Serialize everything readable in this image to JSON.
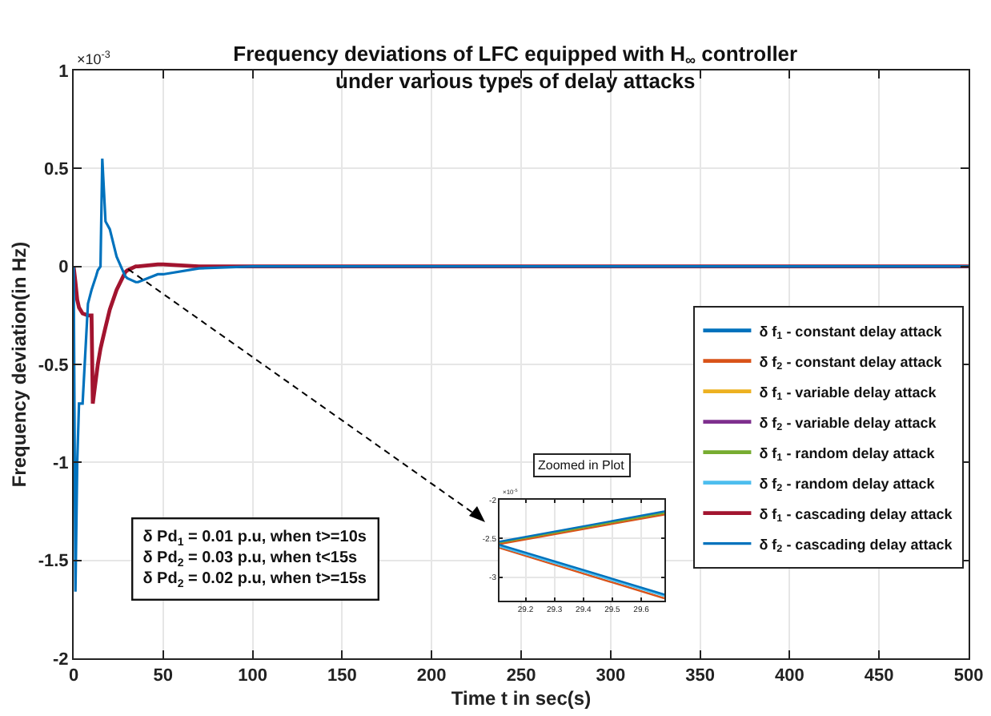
{
  "chart_data": [
    {
      "type": "line",
      "title": "Frequency deviations of LFC equipped with H$_{∞}$ controller\nunder various types of delay attacks",
      "xlabel": "Time t in sec(s)",
      "ylabel": "Frequency deviation(in Hz)",
      "x": [
        0,
        1,
        2,
        3,
        5,
        8,
        10,
        10.7,
        12.5,
        13.5,
        15,
        16,
        17.8,
        20.2,
        24,
        28.8,
        30,
        34.7,
        36,
        47,
        50,
        70,
        100,
        200,
        500
      ],
      "series": [
        {
          "name": "δ f$_{1}$ - constant delay attack",
          "color": "#0072bd",
          "values": [
            null,
            null,
            null,
            null,
            null,
            null,
            null,
            null,
            null,
            null,
            null,
            null,
            null,
            null,
            null,
            null,
            null,
            null,
            null,
            null,
            null,
            null,
            null,
            null,
            null
          ]
        },
        {
          "name": "δ f$_{2}$ - constant delay attack",
          "color": "#d95319",
          "values": [
            null,
            null,
            null,
            null,
            null,
            null,
            null,
            null,
            null,
            null,
            null,
            null,
            null,
            null,
            null,
            null,
            null,
            null,
            null,
            null,
            null,
            null,
            null,
            null,
            null
          ]
        },
        {
          "name": "δ f$_{1}$ - variable delay attack",
          "color": "#edb120",
          "values": [
            null,
            null,
            null,
            null,
            null,
            null,
            null,
            null,
            null,
            null,
            null,
            null,
            null,
            null,
            null,
            null,
            null,
            null,
            null,
            null,
            null,
            null,
            null,
            null,
            null
          ]
        },
        {
          "name": "δ f$_{2}$ - variable delay attack",
          "color": "#7e2f8e",
          "values": [
            null,
            null,
            null,
            null,
            null,
            null,
            null,
            null,
            null,
            null,
            null,
            null,
            null,
            null,
            null,
            null,
            null,
            null,
            null,
            null,
            null,
            null,
            null,
            null,
            null
          ]
        },
        {
          "name": "δ f$_{1}$ - random delay attack",
          "color": "#77ac30",
          "values": [
            null,
            null,
            null,
            null,
            null,
            null,
            null,
            null,
            null,
            null,
            null,
            null,
            null,
            null,
            null,
            null,
            null,
            null,
            null,
            null,
            null,
            null,
            null,
            null,
            null
          ]
        },
        {
          "name": "δ f$_{2}$ - random delay attack",
          "color": "#4dbeee",
          "values": [
            null,
            null,
            null,
            null,
            null,
            null,
            null,
            null,
            null,
            null,
            null,
            null,
            null,
            null,
            null,
            null,
            null,
            null,
            null,
            null,
            null,
            null,
            null,
            null,
            null
          ]
        },
        {
          "name": "δ f$_{1}$ - cascading delay attack",
          "color": "#a2142f",
          "values": [
            0,
            -0.08,
            -0.17,
            -0.21,
            -0.24,
            -0.25,
            -0.25,
            -0.7,
            -0.57,
            -0.5,
            -0.42,
            -0.38,
            -0.31,
            -0.22,
            -0.12,
            -0.03,
            -0.02,
            0,
            0,
            0.01,
            0.01,
            0,
            0,
            0,
            0
          ]
        },
        {
          "name": "δ f$_{2}$ - cascading delay attack",
          "color": "#0072bd",
          "values": [
            0,
            -1.66,
            -1,
            -0.7,
            -0.7,
            -0.19,
            -0.12,
            -0.1,
            -0.05,
            -0.02,
            0,
            0.55,
            0.23,
            0.19,
            0.05,
            -0.05,
            -0.06,
            -0.08,
            -0.08,
            -0.04,
            -0.04,
            -0.01,
            0,
            0,
            0
          ]
        }
      ],
      "xlim": [
        0,
        500
      ],
      "xticks": [
        0,
        50,
        100,
        150,
        200,
        250,
        300,
        350,
        400,
        450,
        500
      ],
      "ylim": [
        -2,
        1
      ],
      "yticks": [
        -2,
        -1.5,
        -1,
        -0.5,
        0,
        0.5,
        1
      ],
      "grid": true,
      "legend": "right",
      "annotations": [
        "×10$^{-3}$",
        "δ Pd$_{1}$ = 0.01 p.u, when t>=10s",
        "δ Pd$_{2}$ = 0.03 p.u, when t<15s",
        "δ Pd$_{2}$ = 0.02 p.u, when t>=15s"
      ]
    },
    {
      "type": "line",
      "title": "Zoomed in Plot",
      "x": [
        29.11,
        29.68
      ],
      "series": [
        {
          "color": "#d95319",
          "values": [
            -2.57,
            -2.19
          ]
        },
        {
          "color": "#77ac30",
          "values": [
            -2.55,
            -2.17
          ]
        },
        {
          "color": "#0072bd",
          "values": [
            -2.54,
            -2.15
          ]
        },
        {
          "color": "#d95319",
          "values": [
            -2.62,
            -3.27
          ]
        },
        {
          "color": "#4dbeee",
          "values": [
            -2.6,
            -3.24
          ]
        },
        {
          "color": "#0072bd",
          "values": [
            -2.58,
            -3.22
          ]
        }
      ],
      "xlim": [
        29.11,
        29.68
      ],
      "xticks": [
        29.2,
        29.3,
        29.4,
        29.5,
        29.6
      ],
      "ylim": [
        -3.3,
        -2
      ],
      "yticks": [
        -3,
        -2.5,
        -2
      ],
      "grid": true,
      "legend": false,
      "annotations": [
        "×10$^{-5}$"
      ]
    }
  ]
}
